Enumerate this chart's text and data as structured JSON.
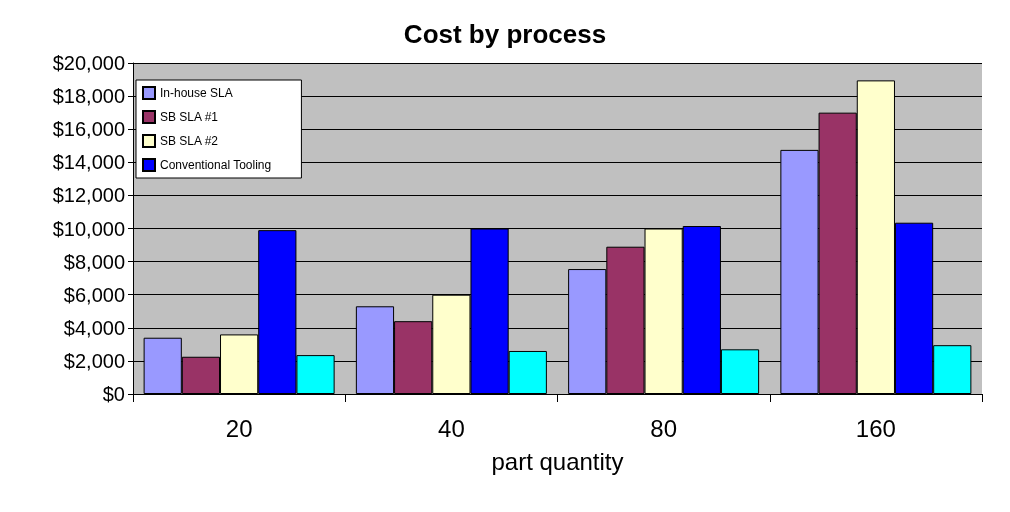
{
  "chart_data": {
    "type": "bar",
    "title": "Cost by process",
    "xlabel": "part quantity",
    "categories": [
      "20",
      "40",
      "80",
      "160"
    ],
    "series": [
      {
        "name": "In-house SLA",
        "color": "#9999ff",
        "values": [
          3400,
          5300,
          7550,
          14750
        ]
      },
      {
        "name": "SB SLA #1",
        "color": "#993366",
        "values": [
          2250,
          4400,
          8900,
          17000
        ]
      },
      {
        "name": "SB SLA #2",
        "color": "#ffffcc",
        "values": [
          3600,
          6000,
          10000,
          18950
        ]
      },
      {
        "name": "Conventional Tooling",
        "color": "#0000ff",
        "values": [
          9900,
          10000,
          10150,
          10350
        ]
      },
      {
        "color": "#00ffff",
        "values": [
          2350,
          2600,
          2700,
          2950
        ]
      }
    ],
    "ylim": [
      0,
      20000
    ],
    "yticks": [
      {
        "value": 0,
        "label": "$0"
      },
      {
        "value": 2000,
        "label": "$2,000"
      },
      {
        "value": 4000,
        "label": "$4,000"
      },
      {
        "value": 6000,
        "label": "$6,000"
      },
      {
        "value": 8000,
        "label": "$8,000"
      },
      {
        "value": 10000,
        "label": "$10,000"
      },
      {
        "value": 12000,
        "label": "$12,000"
      },
      {
        "value": 14000,
        "label": "$14,000"
      },
      {
        "value": 16000,
        "label": "$16,000"
      },
      {
        "value": 18000,
        "label": "$18,000"
      },
      {
        "value": 20000,
        "label": "$20,000"
      }
    ],
    "grid": "y",
    "legend": "top left"
  }
}
